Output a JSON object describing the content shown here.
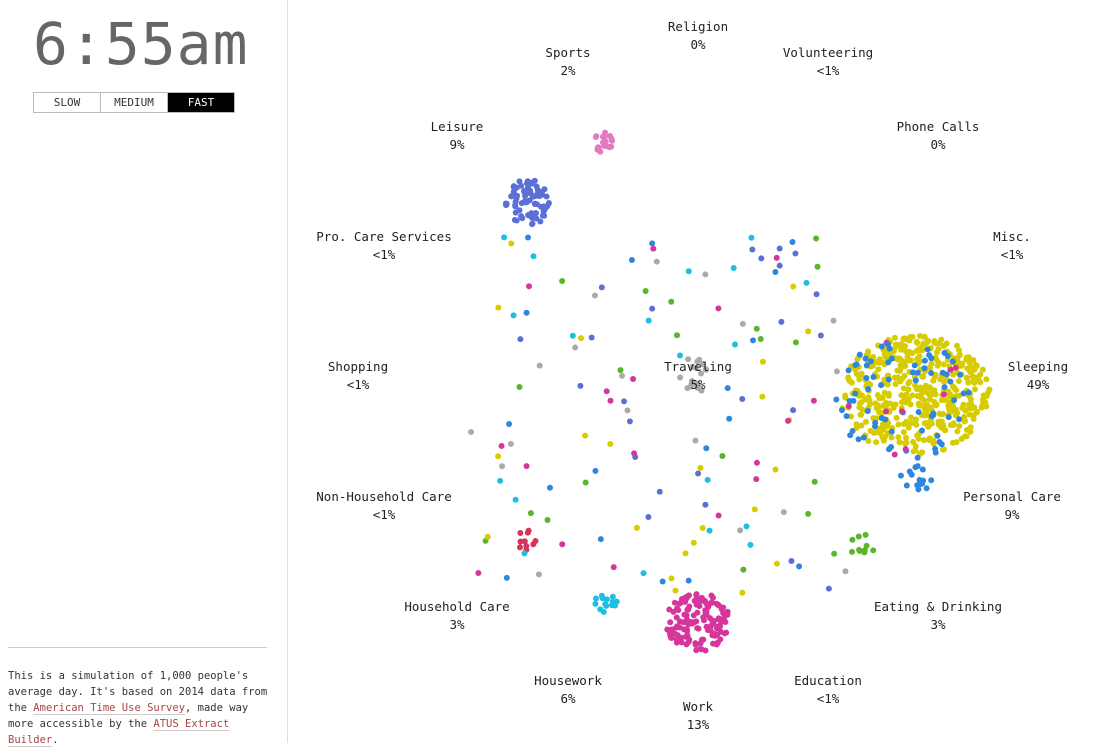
{
  "clock": "6:55am",
  "speeds": [
    "SLOW",
    "MEDIUM",
    "FAST"
  ],
  "activities": [
    {
      "label": "Religion",
      "share": "0%"
    },
    {
      "label": "Sports",
      "share": "2%"
    },
    {
      "label": "Volunteering",
      "share": "<1%"
    },
    {
      "label": "Leisure",
      "share": "9%"
    },
    {
      "label": "Phone Calls",
      "share": "0%"
    },
    {
      "label": "Pro. Care Services",
      "share": "<1%"
    },
    {
      "label": "Misc.",
      "share": "<1%"
    },
    {
      "label": "Shopping",
      "share": "<1%"
    },
    {
      "label": "Traveling",
      "share": "5%"
    },
    {
      "label": "Sleeping",
      "share": "49%"
    },
    {
      "label": "Non-Household Care",
      "share": "<1%"
    },
    {
      "label": "Personal Care",
      "share": "9%"
    },
    {
      "label": "Household Care",
      "share": "3%"
    },
    {
      "label": "Eating & Drinking",
      "share": "3%"
    },
    {
      "label": "Housework",
      "share": "6%"
    },
    {
      "label": "Work",
      "share": "13%"
    },
    {
      "label": "Education",
      "share": "<1%"
    }
  ],
  "footer": {
    "text1": "This is a simulation of 1,000 people's average day. It's based on 2014 data from the ",
    "link1": "American Time Use Survey",
    "text2": ", made way more accessible by the ",
    "link2": "ATUS Extract Builder",
    "text3": "."
  }
}
